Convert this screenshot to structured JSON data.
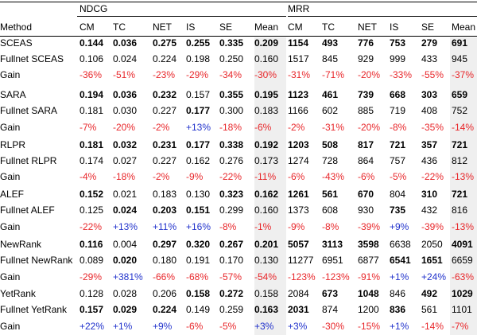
{
  "groups": [
    "NDCG",
    "MRR"
  ],
  "columns": {
    "method": "Method",
    "ndcg": [
      "CM",
      "TC",
      "NET",
      "IS",
      "SE",
      "Mean"
    ],
    "mrr": [
      "CM",
      "TC",
      "NET",
      "IS",
      "SE",
      "Mean"
    ]
  },
  "colors": {
    "decrease": "#e8272b",
    "increase": "#2233cc",
    "mean_shade": "#efefef"
  },
  "rows": [
    {
      "label": "SCEAS",
      "type": "base",
      "ndcg": [
        "0.144",
        "0.036",
        "0.275",
        "0.255",
        "0.335",
        "0.209"
      ],
      "ndcg_bold": [
        true,
        true,
        true,
        true,
        true,
        true
      ],
      "mrr": [
        "1154",
        "493",
        "776",
        "753",
        "279",
        "691"
      ],
      "mrr_bold": [
        true,
        true,
        true,
        true,
        true,
        true
      ]
    },
    {
      "label": "Fullnet SCEAS",
      "type": "full",
      "ndcg": [
        "0.106",
        "0.024",
        "0.224",
        "0.198",
        "0.250",
        "0.160"
      ],
      "ndcg_bold": [
        false,
        false,
        false,
        false,
        false,
        false
      ],
      "mrr": [
        "1517",
        "845",
        "929",
        "999",
        "433",
        "945"
      ],
      "mrr_bold": [
        false,
        false,
        false,
        false,
        false,
        false
      ]
    },
    {
      "label": "Gain",
      "type": "gain",
      "ndcg": [
        "-36%",
        "-51%",
        "-23%",
        "-29%",
        "-34%",
        "-30%"
      ],
      "mrr": [
        "-31%",
        "-71%",
        "-20%",
        "-33%",
        "-55%",
        "-37%"
      ]
    },
    {
      "label": "SARA",
      "type": "base",
      "ndcg": [
        "0.194",
        "0.036",
        "0.232",
        "0.157",
        "0.355",
        "0.195"
      ],
      "ndcg_bold": [
        true,
        true,
        true,
        false,
        true,
        true
      ],
      "mrr": [
        "1123",
        "461",
        "739",
        "668",
        "303",
        "659"
      ],
      "mrr_bold": [
        true,
        true,
        true,
        true,
        true,
        true
      ]
    },
    {
      "label": "Fullnet SARA",
      "type": "full",
      "ndcg": [
        "0.181",
        "0.030",
        "0.227",
        "0.177",
        "0.300",
        "0.183"
      ],
      "ndcg_bold": [
        false,
        false,
        false,
        true,
        false,
        false
      ],
      "mrr": [
        "1166",
        "602",
        "885",
        "719",
        "408",
        "752"
      ],
      "mrr_bold": [
        false,
        false,
        false,
        false,
        false,
        false
      ]
    },
    {
      "label": "Gain",
      "type": "gain",
      "ndcg": [
        "-7%",
        "-20%",
        "-2%",
        "+13%",
        "-18%",
        "-6%"
      ],
      "mrr": [
        "-2%",
        "-31%",
        "-20%",
        "-8%",
        "-35%",
        "-14%"
      ]
    },
    {
      "label": "RLPR",
      "type": "base",
      "ndcg": [
        "0.181",
        "0.032",
        "0.231",
        "0.177",
        "0.338",
        "0.192"
      ],
      "ndcg_bold": [
        true,
        true,
        true,
        true,
        true,
        true
      ],
      "mrr": [
        "1203",
        "508",
        "817",
        "721",
        "357",
        "721"
      ],
      "mrr_bold": [
        true,
        true,
        true,
        true,
        true,
        true
      ]
    },
    {
      "label": "Fullnet RLPR",
      "type": "full",
      "ndcg": [
        "0.174",
        "0.027",
        "0.227",
        "0.162",
        "0.276",
        "0.173"
      ],
      "ndcg_bold": [
        false,
        false,
        false,
        false,
        false,
        false
      ],
      "mrr": [
        "1274",
        "728",
        "864",
        "757",
        "436",
        "812"
      ],
      "mrr_bold": [
        false,
        false,
        false,
        false,
        false,
        false
      ]
    },
    {
      "label": "Gain",
      "type": "gain",
      "ndcg": [
        "-4%",
        "-18%",
        "-2%",
        "-9%",
        "-22%",
        "-11%"
      ],
      "mrr": [
        "-6%",
        "-43%",
        "-6%",
        "-5%",
        "-22%",
        "-13%"
      ]
    },
    {
      "label": "ALEF",
      "type": "base",
      "ndcg": [
        "0.152",
        "0.021",
        "0.183",
        "0.130",
        "0.323",
        "0.162"
      ],
      "ndcg_bold": [
        true,
        false,
        false,
        false,
        true,
        true
      ],
      "mrr": [
        "1261",
        "561",
        "670",
        "804",
        "310",
        "721"
      ],
      "mrr_bold": [
        true,
        true,
        true,
        false,
        true,
        true
      ]
    },
    {
      "label": "Fullnet ALEF",
      "type": "full",
      "ndcg": [
        "0.125",
        "0.024",
        "0.203",
        "0.151",
        "0.299",
        "0.160"
      ],
      "ndcg_bold": [
        false,
        true,
        true,
        true,
        false,
        false
      ],
      "mrr": [
        "1373",
        "608",
        "930",
        "735",
        "432",
        "816"
      ],
      "mrr_bold": [
        false,
        false,
        false,
        true,
        false,
        false
      ]
    },
    {
      "label": "Gain",
      "type": "gain",
      "ndcg": [
        "-22%",
        "+13%",
        "+11%",
        "+16%",
        "-8%",
        "-1%"
      ],
      "mrr": [
        "-9%",
        "-8%",
        "-39%",
        "+9%",
        "-39%",
        "-13%"
      ]
    },
    {
      "label": "NewRank",
      "type": "base",
      "ndcg": [
        "0.116",
        "0.004",
        "0.297",
        "0.320",
        "0.267",
        "0.201"
      ],
      "ndcg_bold": [
        true,
        false,
        true,
        true,
        true,
        true
      ],
      "mrr": [
        "5057",
        "3113",
        "3598",
        "6638",
        "2050",
        "4091"
      ],
      "mrr_bold": [
        true,
        true,
        true,
        false,
        false,
        true
      ]
    },
    {
      "label": "Fullnet NewRank",
      "type": "full",
      "ndcg": [
        "0.089",
        "0.020",
        "0.180",
        "0.191",
        "0.170",
        "0.130"
      ],
      "ndcg_bold": [
        false,
        true,
        false,
        false,
        false,
        false
      ],
      "mrr": [
        "11277",
        "6951",
        "6877",
        "6541",
        "1651",
        "6659"
      ],
      "mrr_bold": [
        false,
        false,
        false,
        true,
        true,
        false
      ]
    },
    {
      "label": "Gain",
      "type": "gain",
      "ndcg": [
        "-29%",
        "+381%",
        "-66%",
        "-68%",
        "-57%",
        "-54%"
      ],
      "mrr": [
        "-123%",
        "-123%",
        "-91%",
        "+1%",
        "+24%",
        "-63%"
      ]
    },
    {
      "label": "YetRank",
      "type": "base",
      "ndcg": [
        "0.128",
        "0.028",
        "0.206",
        "0.158",
        "0.272",
        "0.158"
      ],
      "ndcg_bold": [
        false,
        false,
        false,
        true,
        true,
        false
      ],
      "mrr": [
        "2084",
        "673",
        "1048",
        "846",
        "492",
        "1029"
      ],
      "mrr_bold": [
        false,
        true,
        true,
        false,
        true,
        true
      ]
    },
    {
      "label": "Fullnet YetRank",
      "type": "full",
      "ndcg": [
        "0.157",
        "0.029",
        "0.224",
        "0.149",
        "0.259",
        "0.163"
      ],
      "ndcg_bold": [
        true,
        true,
        true,
        false,
        false,
        true
      ],
      "mrr": [
        "2031",
        "874",
        "1200",
        "836",
        "561",
        "1101"
      ],
      "mrr_bold": [
        true,
        false,
        false,
        true,
        false,
        false
      ]
    },
    {
      "label": "Gain",
      "type": "gain",
      "ndcg": [
        "+22%",
        "+1%",
        "+9%",
        "-6%",
        "-5%",
        "+3%"
      ],
      "mrr": [
        "+3%",
        "-30%",
        "-15%",
        "+1%",
        "-14%",
        "-7%"
      ]
    }
  ]
}
